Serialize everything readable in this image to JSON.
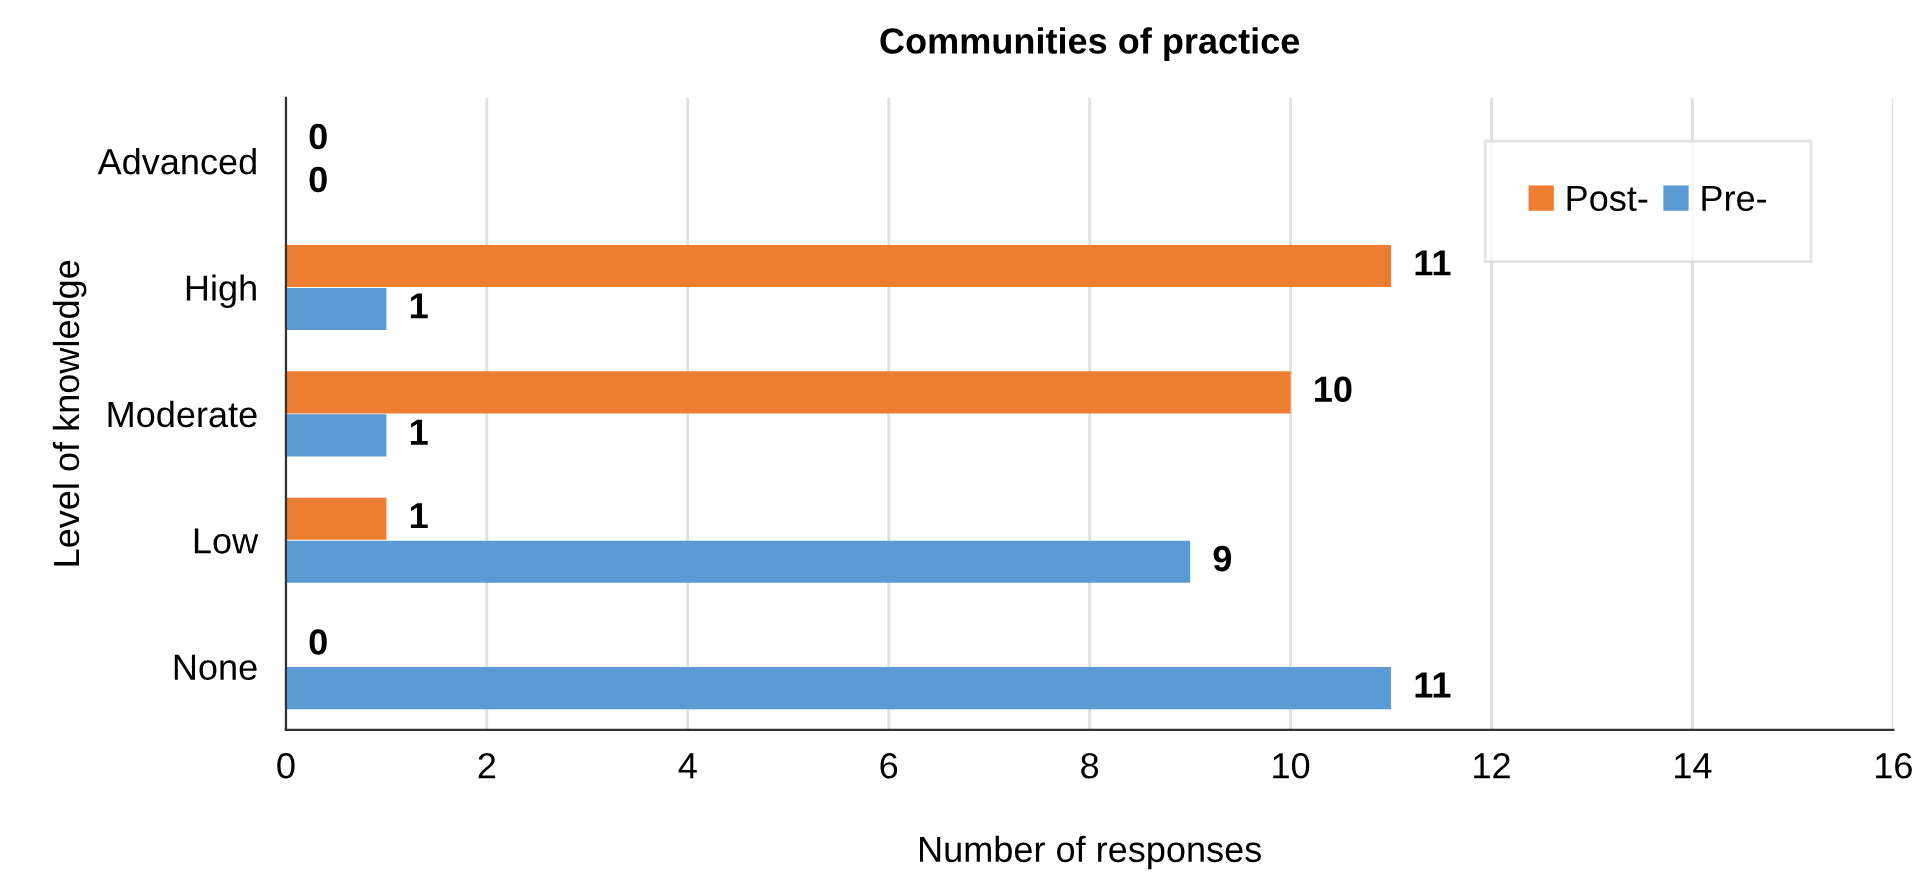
{
  "chart_data": {
    "type": "bar",
    "orientation": "horizontal",
    "title": "Communities of practice",
    "xlabel": "Number of responses",
    "ylabel": "Level of knowledge",
    "categories": [
      "Advanced",
      "High",
      "Moderate",
      "Low",
      "None"
    ],
    "series": [
      {
        "name": "Post-",
        "color": "#ed7d31",
        "values": [
          0,
          11,
          10,
          1,
          0
        ]
      },
      {
        "name": "Pre-",
        "color": "#5b9bd5",
        "values": [
          0,
          1,
          1,
          9,
          11
        ]
      }
    ],
    "xlim": [
      0,
      16
    ],
    "xticks": [
      0,
      2,
      4,
      6,
      8,
      10,
      12,
      14,
      16
    ],
    "grid": "x",
    "legend": "top right",
    "data_labels": true
  }
}
